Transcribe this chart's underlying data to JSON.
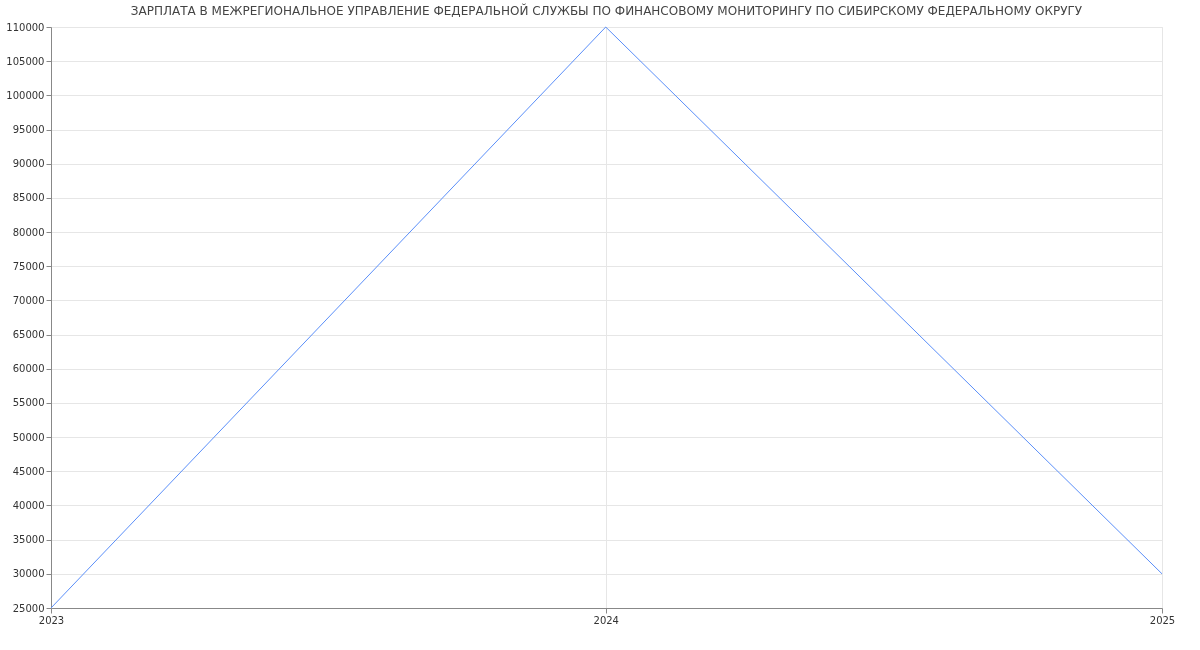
{
  "chart_data": {
    "type": "line",
    "title": "ЗАРПЛАТА В МЕЖРЕГИОНАЛЬНОЕ УПРАВЛЕНИЕ ФЕДЕРАЛЬНОЙ СЛУЖБЫ ПО ФИНАНСОВОМУ МОНИТОРИНГУ ПО СИБИРСКОМУ ФЕДЕРАЛЬНОМУ ОКРУГУ",
    "x": [
      "2023",
      "2024",
      "2025"
    ],
    "series": [
      {
        "color": "#5b8ff9",
        "values": [
          25000,
          110000,
          30000
        ]
      }
    ],
    "xlim": [
      "2023",
      "2025"
    ],
    "xticks": [
      "2023",
      "2024",
      "2025"
    ],
    "ylim": [
      25000,
      110000
    ],
    "yticks": [
      25000,
      30000,
      35000,
      40000,
      45000,
      50000,
      55000,
      60000,
      65000,
      70000,
      75000,
      80000,
      85000,
      90000,
      95000,
      100000,
      105000,
      110000
    ],
    "grid": true,
    "marker": "none",
    "line_style": "solid"
  }
}
